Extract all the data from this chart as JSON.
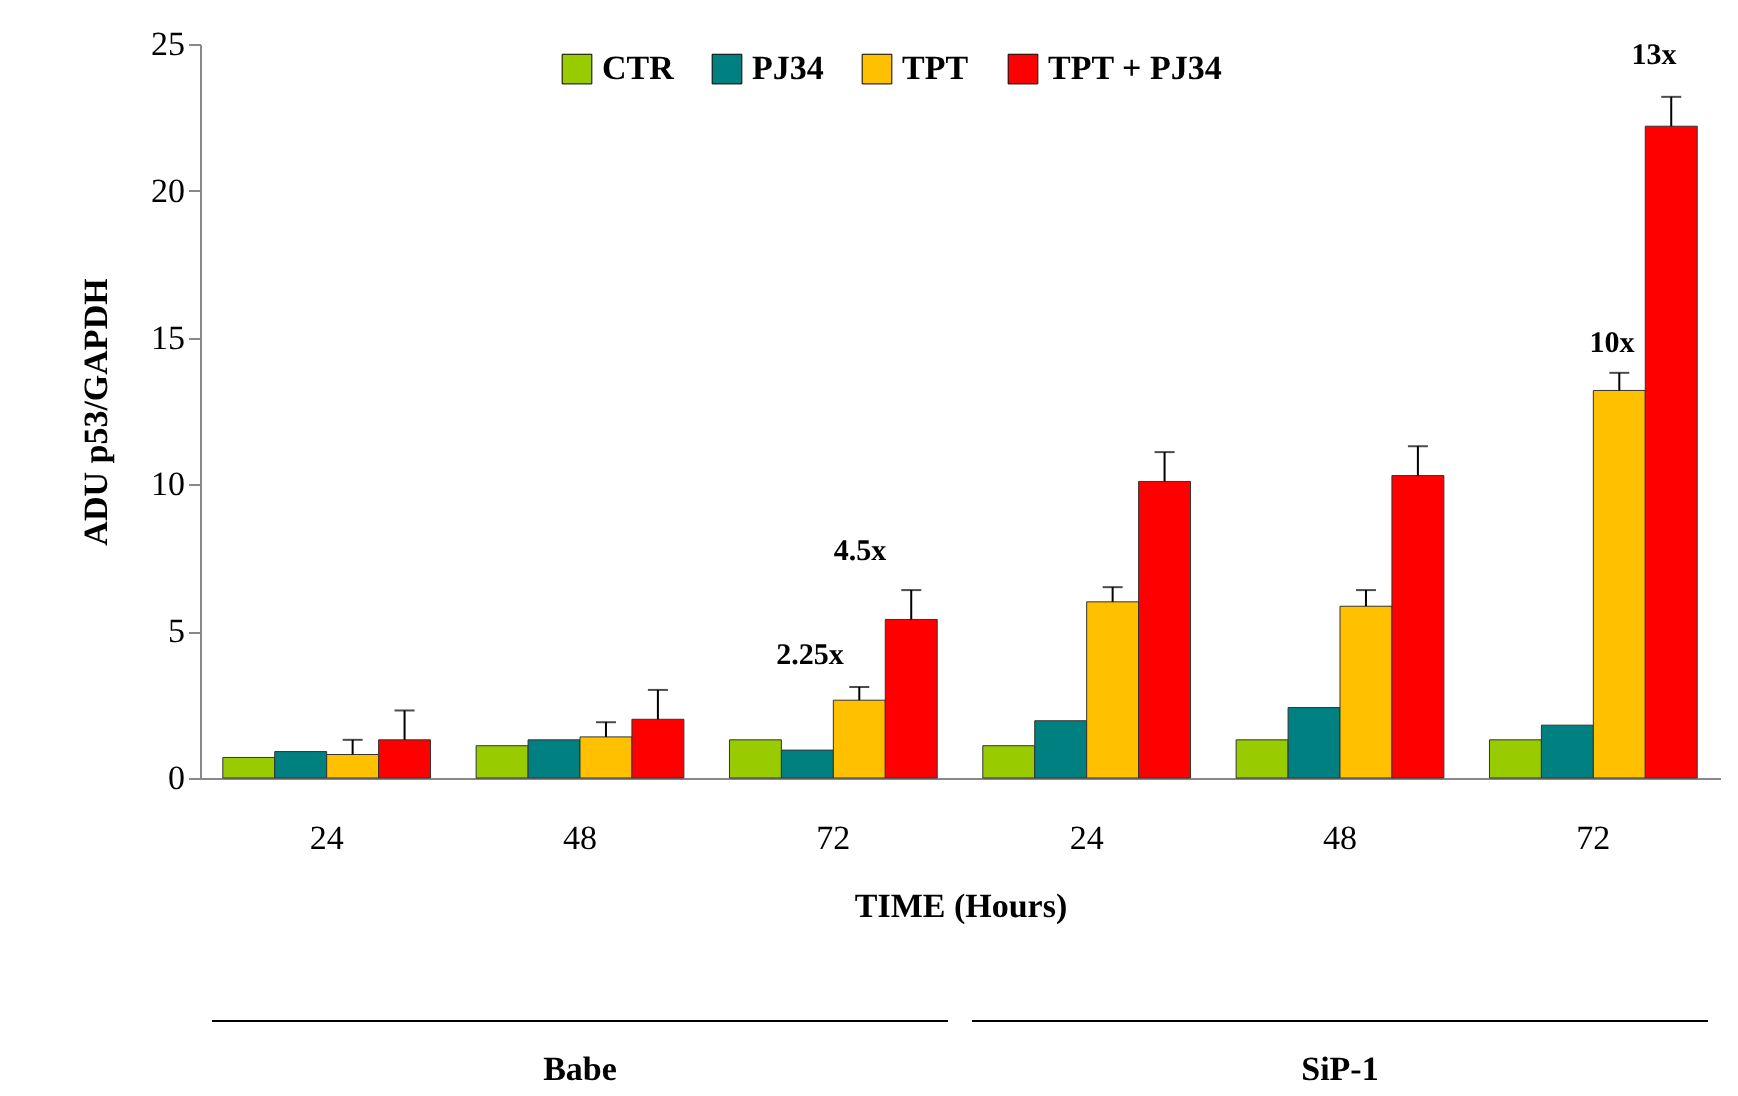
{
  "chart_data": {
    "type": "bar",
    "xlabel": "TIME (Hours)",
    "ylabel": "ADU p53/GAPDH",
    "categories": [
      "24",
      "48",
      "72",
      "24",
      "48",
      "72"
    ],
    "series": [
      {
        "name": "CTR",
        "color": "#99cc00",
        "values": [
          0.7,
          1.1,
          1.3,
          1.1,
          1.3,
          1.3
        ]
      },
      {
        "name": "PJ34",
        "color": "#008080",
        "values": [
          0.9,
          1.3,
          0.95,
          1.95,
          2.4,
          1.8
        ]
      },
      {
        "name": "TPT",
        "color": "#ffc000",
        "values": [
          0.8,
          1.4,
          2.65,
          6.0,
          5.85,
          13.2
        ],
        "errors": [
          [
            0.8,
            1.3
          ],
          [
            1.4,
            1.9
          ],
          [
            2.65,
            3.1
          ],
          [
            6.0,
            6.5
          ],
          [
            5.85,
            6.4
          ],
          [
            13.2,
            13.8
          ]
        ]
      },
      {
        "name": "TPT + PJ34",
        "color": "#ff0000",
        "values": [
          1.3,
          2.0,
          5.4,
          10.1,
          10.3,
          22.2
        ],
        "errors": [
          [
            1.3,
            2.3
          ],
          [
            2.0,
            3.0
          ],
          [
            5.4,
            6.4
          ],
          [
            10.1,
            11.1
          ],
          [
            10.3,
            11.3
          ],
          [
            22.2,
            23.2
          ]
        ]
      }
    ],
    "ylim": [
      0,
      25
    ],
    "yticks": [
      0,
      5,
      10,
      15,
      20,
      25
    ],
    "legend": "top",
    "annotations": [
      "2.25x",
      "4.5x",
      "10x",
      "13x",
      "Babe",
      "SiP-1"
    ]
  }
}
